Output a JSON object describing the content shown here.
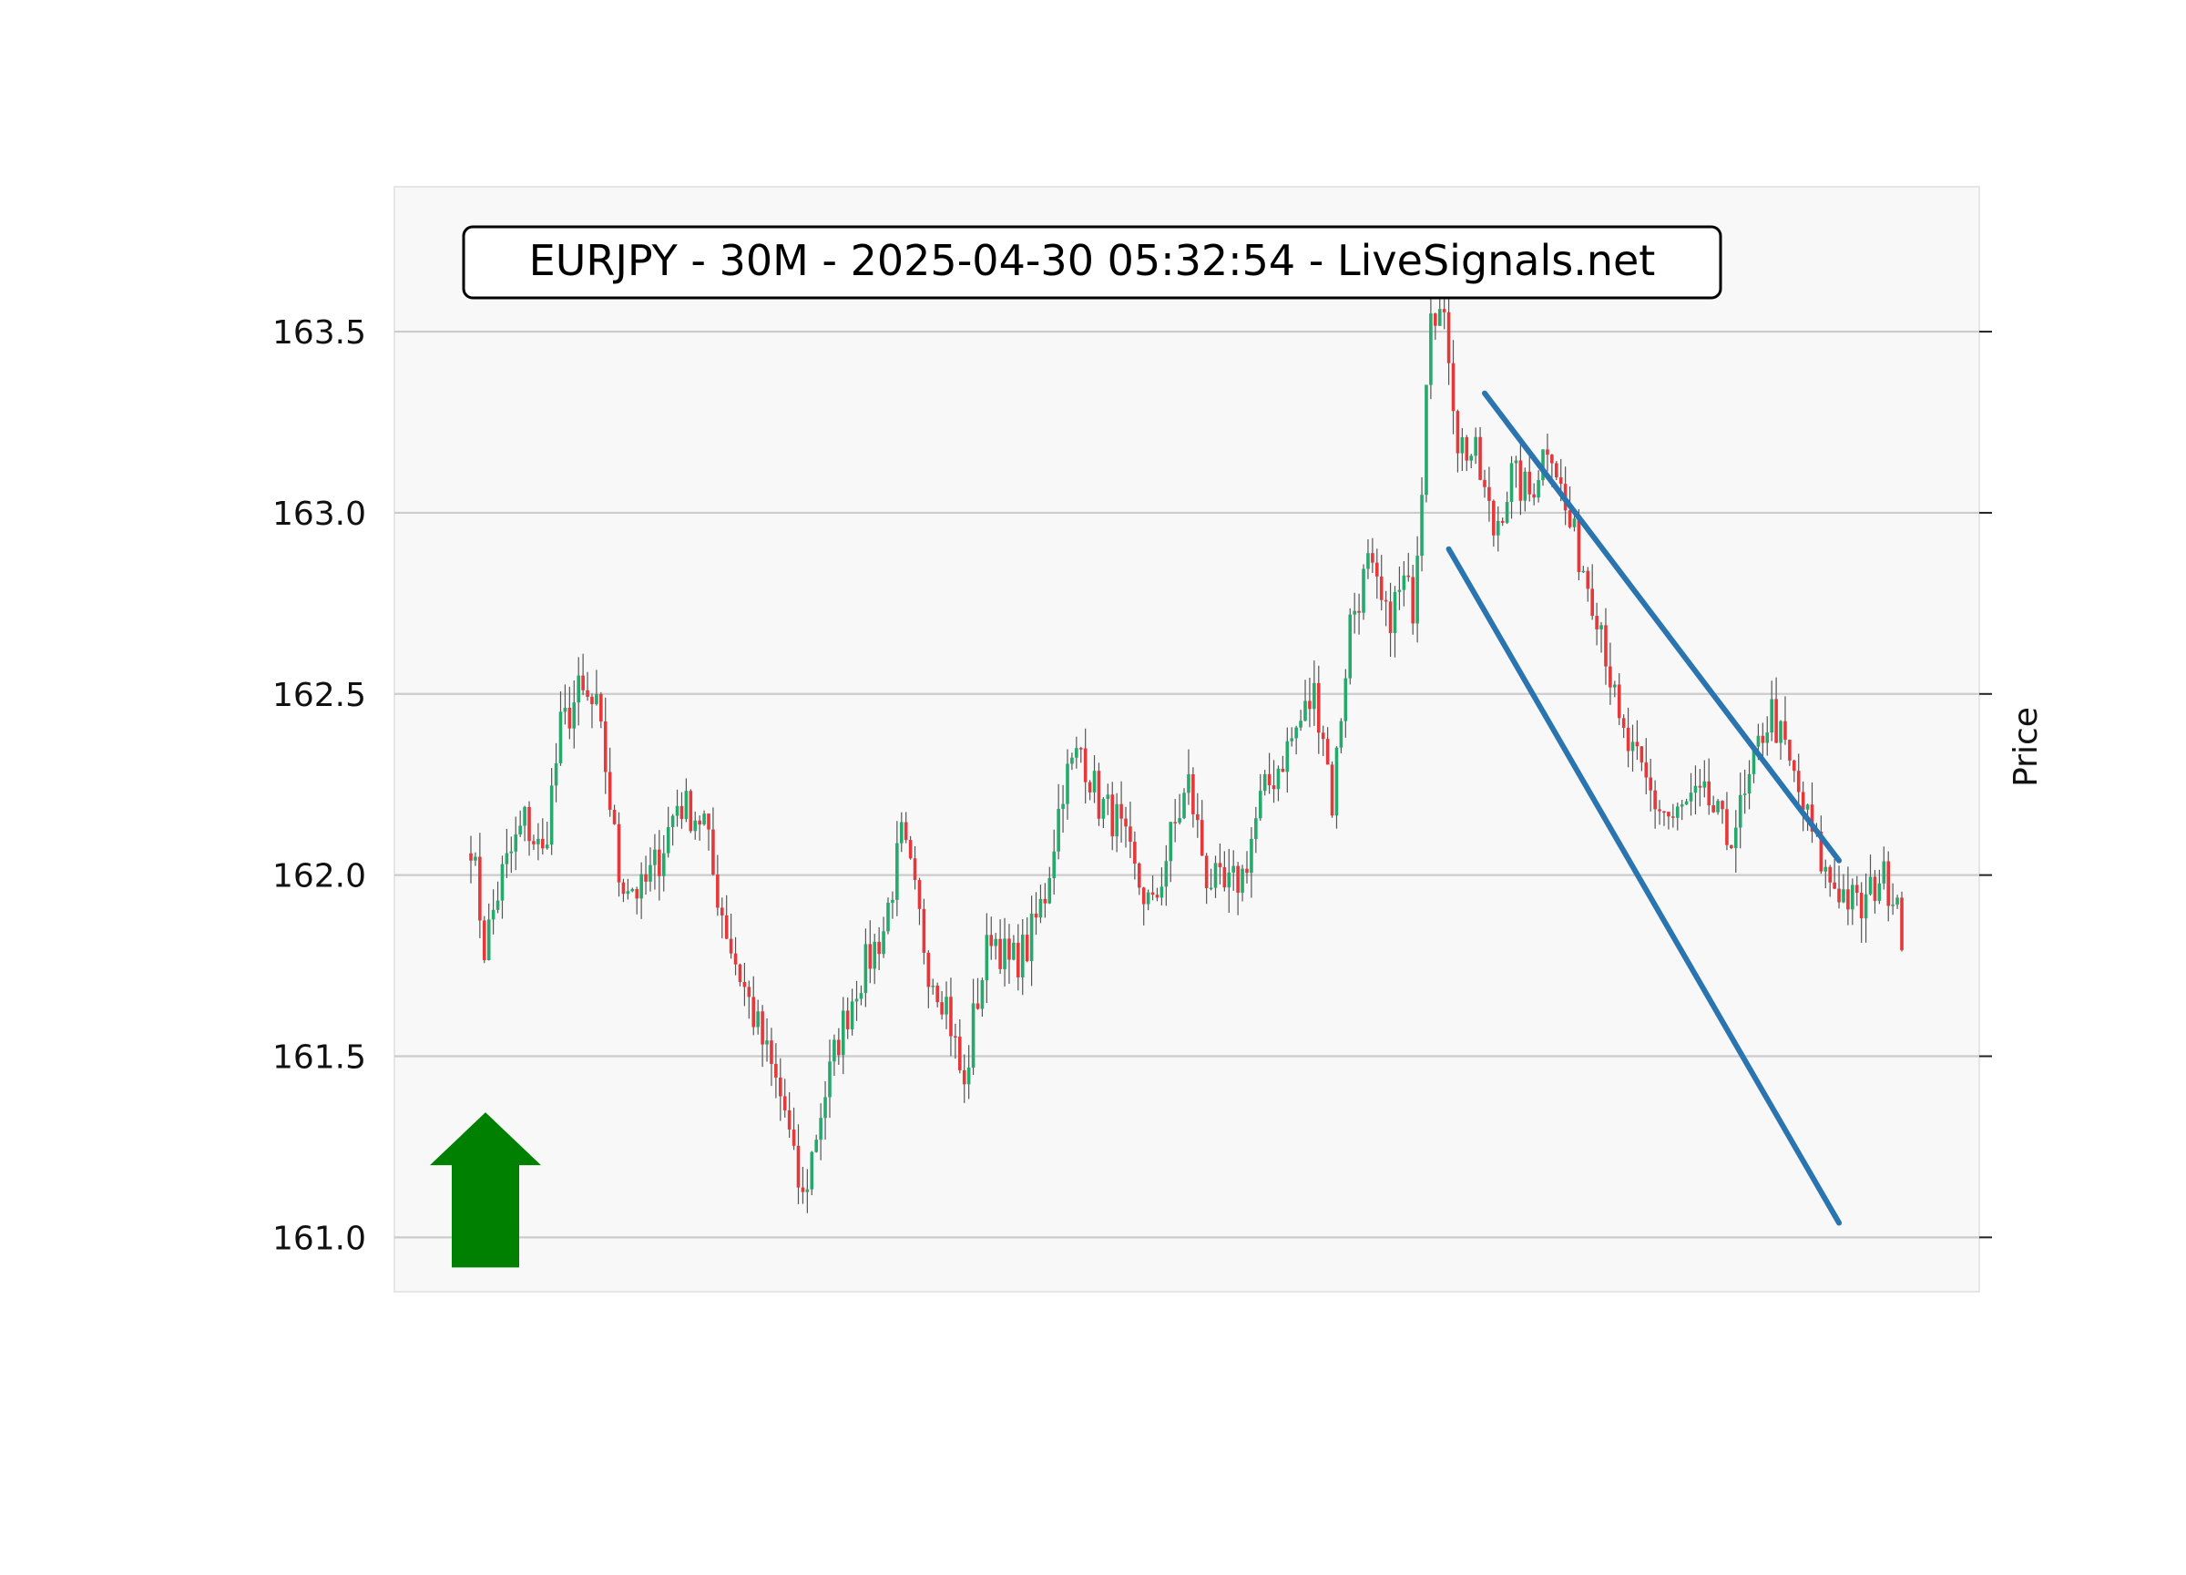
{
  "colors": {
    "plot_bg": "#f8f8f8",
    "grid": "#cccccc",
    "up": "#26a96c",
    "down": "#e5383b",
    "wick": "#555555",
    "trendline": "#2a74b0",
    "arrow": "#008000",
    "text": "#111111"
  },
  "chart_data": {
    "type": "candlestick",
    "title": "EURJPY - 30M - 2025-04-30 05:32:54 - LiveSignals.net",
    "xlabel": "",
    "ylabel": "Price",
    "ylim": [
      160.85,
      163.9
    ],
    "y_ticks": [
      161.0,
      161.5,
      162.0,
      162.5,
      163.0,
      163.5
    ],
    "y_tick_labels": [
      "161.0",
      "161.5",
      "162.0",
      "162.5",
      "163.0",
      "163.5"
    ],
    "y_axis_side": "left labels, right ticks",
    "grid": "horizontal",
    "legend": "none",
    "candle_count": 240,
    "price_anchors": [
      [
        0,
        162.1
      ],
      [
        3,
        161.8
      ],
      [
        7,
        162.0
      ],
      [
        12,
        162.15
      ],
      [
        16,
        162.05
      ],
      [
        20,
        162.4
      ],
      [
        24,
        162.5
      ],
      [
        28,
        162.45
      ],
      [
        30,
        162.3
      ],
      [
        33,
        162.0
      ],
      [
        38,
        161.95
      ],
      [
        42,
        162.05
      ],
      [
        46,
        162.2
      ],
      [
        52,
        162.15
      ],
      [
        54,
        162.0
      ],
      [
        58,
        161.8
      ],
      [
        62,
        161.65
      ],
      [
        66,
        161.5
      ],
      [
        70,
        161.35
      ],
      [
        72,
        161.2
      ],
      [
        74,
        161.1
      ],
      [
        78,
        161.35
      ],
      [
        82,
        161.55
      ],
      [
        86,
        161.7
      ],
      [
        92,
        161.85
      ],
      [
        96,
        162.1
      ],
      [
        98,
        162.0
      ],
      [
        102,
        161.75
      ],
      [
        106,
        161.65
      ],
      [
        110,
        161.4
      ],
      [
        112,
        161.6
      ],
      [
        116,
        161.85
      ],
      [
        120,
        161.75
      ],
      [
        124,
        161.8
      ],
      [
        128,
        161.95
      ],
      [
        132,
        162.25
      ],
      [
        136,
        162.35
      ],
      [
        140,
        162.2
      ],
      [
        144,
        162.15
      ],
      [
        148,
        162.0
      ],
      [
        152,
        161.9
      ],
      [
        156,
        162.1
      ],
      [
        160,
        162.25
      ],
      [
        164,
        162.0
      ],
      [
        168,
        161.95
      ],
      [
        172,
        162.0
      ],
      [
        176,
        162.2
      ],
      [
        180,
        162.3
      ],
      [
        184,
        162.4
      ],
      [
        188,
        162.5
      ],
      [
        190,
        162.4
      ],
      [
        192,
        162.2
      ],
      [
        196,
        162.7
      ],
      [
        200,
        162.85
      ],
      [
        204,
        162.7
      ],
      [
        208,
        162.8
      ],
      [
        210,
        162.75
      ],
      [
        212,
        163.1
      ],
      [
        213,
        163.4
      ],
      [
        214,
        163.6
      ],
      [
        216,
        163.55
      ],
      [
        218,
        163.45
      ],
      [
        220,
        163.2
      ],
      [
        224,
        163.15
      ],
      [
        228,
        162.95
      ],
      [
        232,
        163.1
      ],
      [
        236,
        163.05
      ],
      [
        240,
        163.2
      ]
    ],
    "note_seg2_anchors": [
      [
        0,
        163.25
      ],
      [
        4,
        163.0
      ],
      [
        8,
        162.85
      ],
      [
        12,
        162.7
      ],
      [
        16,
        162.4
      ],
      [
        20,
        162.3
      ],
      [
        24,
        162.2
      ],
      [
        28,
        162.15
      ],
      [
        32,
        162.2
      ],
      [
        36,
        162.2
      ],
      [
        40,
        162.1
      ],
      [
        44,
        162.2
      ],
      [
        48,
        162.4
      ],
      [
        50,
        162.45
      ],
      [
        54,
        162.3
      ],
      [
        58,
        162.15
      ],
      [
        62,
        162.0
      ],
      [
        66,
        161.95
      ],
      [
        70,
        161.9
      ],
      [
        74,
        162.0
      ],
      [
        78,
        161.95
      ],
      [
        80,
        161.75
      ],
      [
        82,
        161.9
      ]
    ],
    "overlays": {
      "upper_trendline": {
        "from": [
          226,
          163.33
        ],
        "to": [
          305,
          162.04
        ]
      },
      "lower_trendline": {
        "from": [
          218,
          162.9
        ],
        "to": [
          305,
          161.04
        ]
      },
      "signal_arrow": {
        "direction": "up",
        "center_x": 2,
        "y_from": 161.0,
        "y_to": 161.35
      }
    }
  }
}
